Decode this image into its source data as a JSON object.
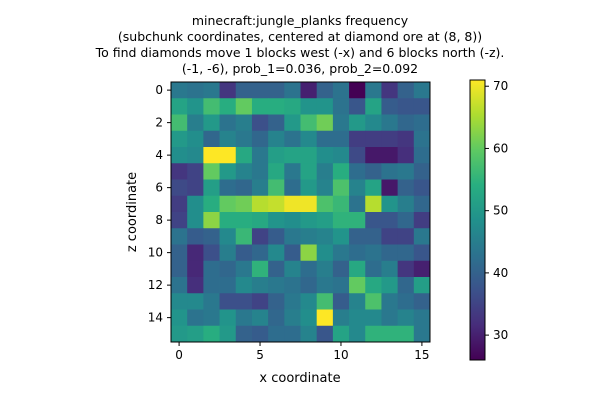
{
  "chart_data": {
    "type": "heatmap",
    "title_lines": [
      "minecraft:jungle_planks frequency",
      "(subchunk coordinates, centered at diamond ore at (8, 8))",
      "To find diamonds move 1 blocks west (-x) and 6 blocks north (-z).",
      "(-1, -6), prob_1=0.036, prob_2=0.092"
    ],
    "xlabel": "x coordinate",
    "ylabel": "z coordinate",
    "x_ticks": [
      0,
      5,
      10,
      15
    ],
    "y_ticks": [
      0,
      2,
      4,
      6,
      8,
      10,
      12,
      14
    ],
    "colorbar_ticks": [
      30,
      40,
      50,
      60,
      70
    ],
    "vmin": 26,
    "vmax": 71,
    "colormap": "viridis",
    "grid": [
      [
        44,
        43,
        44,
        33,
        40,
        40,
        40,
        43,
        30,
        40,
        43,
        26,
        44,
        33,
        40,
        44
      ],
      [
        52,
        49,
        57,
        54,
        60,
        54,
        54,
        53,
        49,
        49,
        43,
        38,
        52,
        39,
        38,
        38
      ],
      [
        57,
        45,
        50,
        43,
        45,
        37,
        40,
        50,
        57,
        61,
        44,
        50,
        47,
        44,
        41,
        42
      ],
      [
        50,
        48,
        41,
        46,
        44,
        41,
        46,
        43,
        47,
        42,
        42,
        34,
        34,
        34,
        33,
        43
      ],
      [
        48,
        47,
        71,
        71,
        53,
        44,
        51,
        52,
        52,
        48,
        47,
        36,
        29,
        29,
        32,
        42
      ],
      [
        33,
        35,
        60,
        50,
        46,
        44,
        53,
        44,
        52,
        45,
        54,
        42,
        40,
        43,
        44,
        40
      ],
      [
        36,
        35,
        51,
        42,
        41,
        45,
        57,
        42,
        50,
        46,
        58,
        46,
        52,
        29,
        40,
        38
      ],
      [
        34,
        48,
        54,
        60,
        61,
        66,
        67,
        70,
        70,
        58,
        56,
        43,
        66,
        49,
        45,
        41
      ],
      [
        35,
        48,
        63,
        54,
        54,
        53,
        49,
        48,
        50,
        51,
        55,
        55,
        38,
        38,
        41,
        34
      ],
      [
        43,
        39,
        40,
        47,
        56,
        35,
        39,
        44,
        45,
        46,
        49,
        40,
        40,
        35,
        35,
        44
      ],
      [
        40,
        31,
        37,
        45,
        39,
        41,
        47,
        39,
        63,
        48,
        44,
        42,
        43,
        41,
        41,
        38
      ],
      [
        40,
        31,
        42,
        41,
        44,
        55,
        40,
        46,
        42,
        45,
        40,
        53,
        42,
        45,
        33,
        30
      ],
      [
        43,
        32,
        42,
        42,
        47,
        45,
        44,
        43,
        41,
        44,
        43,
        60,
        53,
        50,
        41,
        51
      ],
      [
        47,
        47,
        44,
        37,
        37,
        35,
        40,
        44,
        47,
        57,
        39,
        46,
        58,
        44,
        42,
        40
      ],
      [
        49,
        43,
        44,
        49,
        44,
        46,
        41,
        45,
        48,
        71,
        45,
        47,
        47,
        44,
        46,
        44
      ],
      [
        50,
        51,
        54,
        50,
        40,
        39,
        42,
        42,
        46,
        38,
        52,
        47,
        55,
        55,
        55,
        44
      ]
    ]
  }
}
